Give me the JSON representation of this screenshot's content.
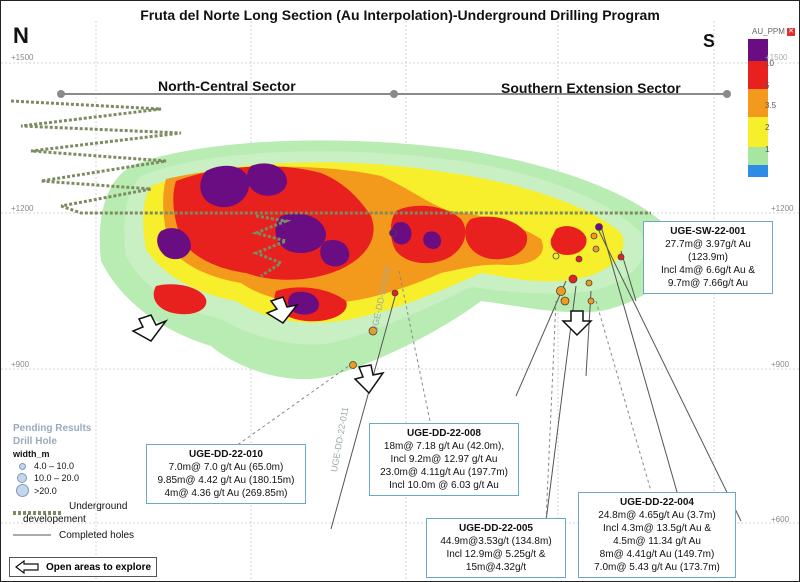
{
  "title": "Fruta del Norte Long Section (Au Interpolation)-Underground Drilling Program",
  "north_label": "N",
  "south_label": "S",
  "elevations": {
    "e1500": "+1500",
    "e1200": "+1200",
    "e900": "+900",
    "e600": "+600"
  },
  "sectors": {
    "north": "North-Central Sector",
    "south": "Southern Extension Sector"
  },
  "legend": {
    "title": "AU_PPM",
    "values": [
      "10",
      "5",
      "3.5",
      "2",
      "1"
    ],
    "top_value": "+1500",
    "colors": [
      "#6a0d83",
      "#e8201e",
      "#f39a1c",
      "#f7ee2c",
      "#a6e6a1",
      "#2f8be6"
    ]
  },
  "drill_labels": [
    "UGE-DD-22-013",
    "UGE-DD-22-011"
  ],
  "infoboxes": {
    "sw001": {
      "id": "UGE-SW-22-001",
      "lines": [
        "27.7m@ 3.97g/t  Au (123.9m)",
        "Incl 4m@ 6.6g/t Au &",
        "9.7m@ 7.66g/t Au"
      ]
    },
    "dd010": {
      "id": "UGE-DD-22-010",
      "lines": [
        "7.0m@ 7.0 g/t Au  (65.0m)",
        "9.85m@ 4.42 g/t Au (180.15m)",
        "4m@ 4.36 g/t  Au (269.85m)"
      ]
    },
    "dd008": {
      "id": "UGE-DD-22-008",
      "lines": [
        "18m@ 7.18 g/t Au (42.0m),",
        "Incl 9.2m@ 12.97 g/t Au",
        "23.0m@ 4.11g/t Au (197.7m)",
        "Incl 10.0m @ 6.03 g/t Au"
      ]
    },
    "dd005": {
      "id": "UGE-DD-22-005",
      "lines": [
        "44.9m@3.53g/t (134.8m)",
        "Incl 12.9m@ 5.25g/t &",
        "15m@4.32g/t"
      ]
    },
    "dd004": {
      "id": "UGE-DD-22-004",
      "lines": [
        "24.8m@ 4.65g/t  Au (3.7m)",
        "Incl 4.3m@ 13.5g/t Au &",
        "4.5m@ 11.34 g/t Au",
        "8m@ 4.41g/t Au (149.7m)",
        "7.0m@ 5.43 g/t Au (173.7m)"
      ]
    }
  },
  "pending": {
    "line1": "Pending Results",
    "line2": "Drill Hole"
  },
  "width_legend": {
    "title": "width_m",
    "items": [
      "4.0 – 10.0",
      "10.0 – 20.0",
      ">20.0"
    ]
  },
  "underground": {
    "label1": "Underground",
    "label2": "developement",
    "completed": "Completed  holes"
  },
  "open_areas": "Open areas to explore"
}
